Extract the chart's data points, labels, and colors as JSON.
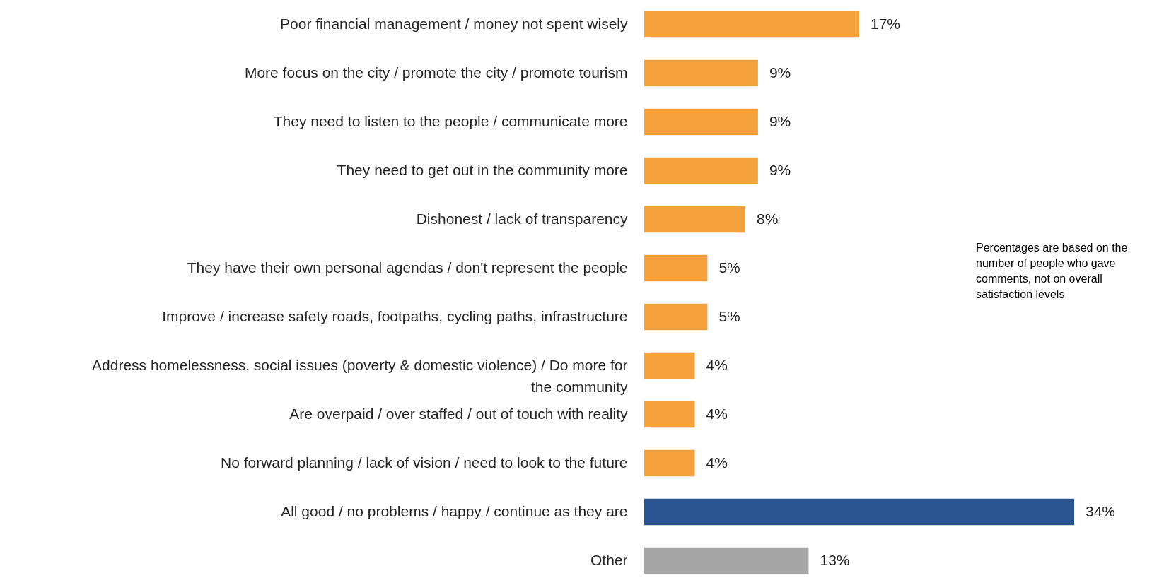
{
  "chart_data": {
    "type": "bar",
    "orientation": "horizontal",
    "data_labels": true,
    "categories": [
      "Poor financial management / money not spent wisely",
      "More focus on the city / promote the city / promote tourism",
      "They need to listen to the people / communicate more",
      "They need to get out in the community more",
      "Dishonest / lack of transparency",
      "They have their own personal agendas / don't represent the people",
      "Improve / increase safety roads, footpaths, cycling paths, infrastructure",
      "Address homelessness, social issues (poverty & domestic violence) / Do more for the community",
      "Are overpaid / over staffed / out of touch with reality",
      "No forward planning / lack of vision / need to look to the future",
      "All good / no problems / happy / continue as they are",
      "Other"
    ],
    "values": [
      17,
      9,
      9,
      9,
      8,
      5,
      5,
      4,
      4,
      4,
      34,
      13
    ],
    "value_labels": [
      "17%",
      "9%",
      "9%",
      "9%",
      "8%",
      "5%",
      "5%",
      "4%",
      "4%",
      "4%",
      "34%",
      "13%"
    ],
    "colors": [
      "#f6a23c",
      "#f6a23c",
      "#f6a23c",
      "#f6a23c",
      "#f6a23c",
      "#f6a23c",
      "#f6a23c",
      "#f6a23c",
      "#f6a23c",
      "#f6a23c",
      "#2a5591",
      "#a6a6a6"
    ],
    "annotations": [
      "Percentages are based on the number of people who gave comments, not on overall satisfaction levels"
    ]
  }
}
